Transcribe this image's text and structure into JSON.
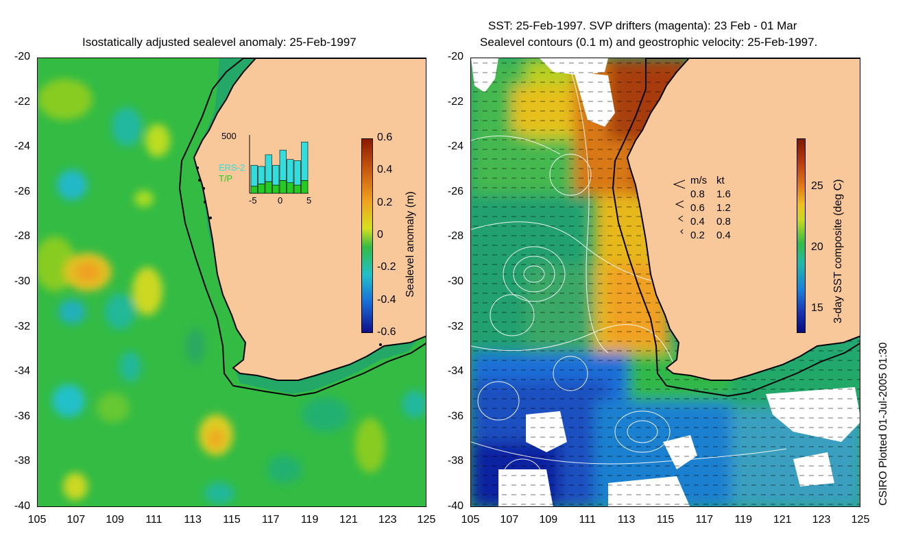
{
  "left_panel": {
    "title": "Isostatically adjusted sealevel anomaly: 25-Feb-1997",
    "colorbar": {
      "label": "Sealevel anomaly (m)",
      "ticks": [
        "0.6",
        "0.4",
        "0.2",
        "0",
        "-0.2",
        "-0.4",
        "-0.6"
      ],
      "range": [
        -0.6,
        0.6
      ]
    },
    "inset": {
      "ymax_label": "500",
      "series": [
        "ERS-2",
        "T/P"
      ],
      "series_colors": [
        "#33dddd",
        "#22cc22"
      ],
      "x_ticks": [
        "-5",
        "0",
        "5"
      ],
      "ers2_counts": [
        180,
        150,
        230,
        170,
        260,
        200,
        210,
        330
      ],
      "tp_counts": [
        60,
        80,
        100,
        70,
        110,
        90,
        70,
        110
      ]
    }
  },
  "right_panel": {
    "title_line1": "SST: 25-Feb-1997. SVP drifters (magenta): 23 Feb - 01 Mar",
    "title_line2": "Sealevel contours (0.1 m) and geostrophic velocity: 25-Feb-1997.",
    "colorbar": {
      "label": "3-day SST composite (deg C)",
      "ticks": [
        "25",
        "20",
        "15"
      ],
      "range": [
        13,
        29
      ]
    },
    "velocity_legend": {
      "header_ms": "m/s",
      "header_kt": "kt",
      "rows": [
        {
          "ms": "0.8",
          "kt": "1.6"
        },
        {
          "ms": "0.6",
          "kt": "1.2"
        },
        {
          "ms": "0.4",
          "kt": "0.8"
        },
        {
          "ms": "0.2",
          "kt": "0.4"
        }
      ]
    }
  },
  "axes": {
    "y_ticks": [
      "-20",
      "-22",
      "-24",
      "-26",
      "-28",
      "-30",
      "-32",
      "-34",
      "-36",
      "-38",
      "-40"
    ],
    "x_ticks": [
      "105",
      "107",
      "109",
      "111",
      "113",
      "115",
      "117",
      "119",
      "121",
      "123",
      "125"
    ]
  },
  "credit": "CSIRO Plotted 01-Jul-2005 01:30",
  "colors": {
    "land": "#f9c89a",
    "ocean_base": "#33bb44",
    "positive_anomaly": "#ddcc22",
    "negative_anomaly": "#22b8c8"
  }
}
